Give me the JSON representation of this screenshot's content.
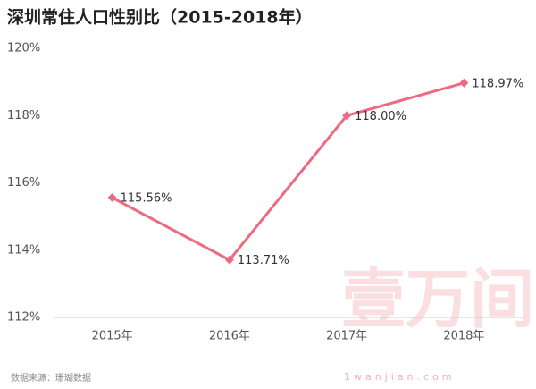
{
  "chart_data": {
    "type": "line",
    "title": "深圳常住人口性别比（2015-2018年）",
    "categories": [
      "2015年",
      "2016年",
      "2017年",
      "2018年"
    ],
    "series": [
      {
        "name": "性别比",
        "color": "#ee6a82",
        "values": [
          115.56,
          113.71,
          118.0,
          118.97
        ],
        "value_labels": [
          "115.56%",
          "113.71%",
          "118.00%",
          "118.97%"
        ]
      }
    ],
    "ylim": [
      112,
      120
    ],
    "yticks": [
      {
        "value": 112,
        "label": "112%"
      },
      {
        "value": 114,
        "label": "114%"
      },
      {
        "value": 116,
        "label": "116%"
      },
      {
        "value": 118,
        "label": "118%"
      },
      {
        "value": 120,
        "label": "120%"
      }
    ],
    "grid": false,
    "source": "数据来源：珊瑚数据",
    "watermark": {
      "logo": "壹万间",
      "url": "1wanjian.com"
    }
  }
}
